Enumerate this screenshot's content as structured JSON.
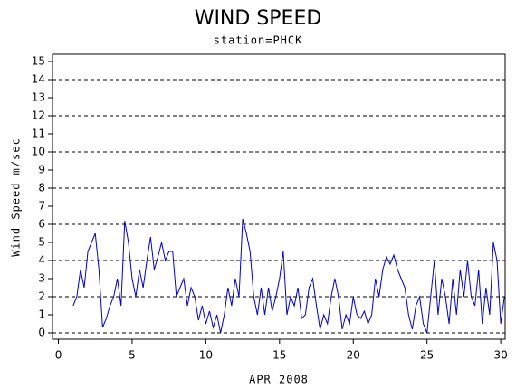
{
  "chart_data": {
    "type": "line",
    "title": "WIND SPEED",
    "subtitle": "station=PHCK",
    "x_label": "APR 2008",
    "y_label": "Wind Speed m/sec",
    "xlim": [
      -0.4,
      30.3
    ],
    "xticks": [
      0,
      5,
      10,
      15,
      20,
      25,
      30
    ],
    "ylim": [
      -0.35,
      15.4
    ],
    "yticks": [
      0,
      1,
      2,
      3,
      4,
      5,
      6,
      7,
      8,
      9,
      10,
      11,
      12,
      13,
      14,
      15
    ],
    "grid": true,
    "grid_step": 2,
    "x": [
      1,
      1.25,
      1.5,
      1.75,
      2,
      2.25,
      2.5,
      2.75,
      3,
      3.25,
      3.5,
      3.75,
      4,
      4.25,
      4.5,
      4.75,
      5,
      5.25,
      5.5,
      5.75,
      6,
      6.25,
      6.5,
      6.75,
      7,
      7.25,
      7.5,
      7.75,
      8,
      8.25,
      8.5,
      8.75,
      9,
      9.25,
      9.5,
      9.75,
      10,
      10.25,
      10.5,
      10.75,
      11,
      11.25,
      11.5,
      11.75,
      12,
      12.25,
      12.5,
      12.75,
      13,
      13.25,
      13.5,
      13.75,
      14,
      14.25,
      14.5,
      14.75,
      15,
      15.25,
      15.5,
      15.75,
      16,
      16.25,
      16.5,
      16.75,
      17,
      17.25,
      17.5,
      17.75,
      18,
      18.25,
      18.5,
      18.75,
      19,
      19.25,
      19.5,
      19.75,
      20,
      20.25,
      20.5,
      20.75,
      21,
      21.25,
      21.5,
      21.75,
      22,
      22.25,
      22.5,
      22.75,
      23,
      23.25,
      23.5,
      23.75,
      24,
      24.25,
      24.5,
      24.75,
      25,
      25.25,
      25.5,
      25.75,
      26,
      26.25,
      26.5,
      26.75,
      27,
      27.25,
      27.5,
      27.75,
      28,
      28.25,
      28.5,
      28.75,
      29,
      29.25,
      29.5,
      29.75,
      30,
      30.25
    ],
    "series": [
      {
        "color": "#0000cc",
        "values": [
          1.5,
          2.0,
          3.5,
          2.5,
          4.5,
          5.0,
          5.5,
          3.5,
          0.3,
          0.8,
          1.5,
          2.0,
          3.0,
          1.5,
          6.2,
          5.0,
          3.0,
          2.0,
          3.5,
          2.5,
          4.0,
          5.3,
          3.5,
          4.2,
          5.0,
          4.0,
          4.5,
          4.5,
          2.0,
          2.5,
          3.0,
          1.5,
          2.5,
          2.0,
          0.7,
          1.5,
          0.5,
          1.2,
          0.3,
          1.0,
          0.0,
          1.0,
          2.5,
          1.5,
          3.0,
          2.0,
          6.3,
          5.5,
          4.5,
          2.0,
          1.0,
          2.5,
          1.0,
          2.5,
          1.2,
          2.0,
          3.0,
          4.5,
          1.0,
          2.0,
          1.5,
          2.5,
          0.8,
          1.0,
          2.5,
          3.0,
          1.5,
          0.2,
          1.0,
          0.5,
          2.0,
          3.0,
          2.0,
          0.2,
          1.0,
          0.5,
          2.0,
          1.0,
          0.8,
          1.2,
          0.5,
          1.0,
          3.0,
          2.0,
          3.5,
          4.2,
          3.8,
          4.3,
          3.5,
          3.0,
          2.5,
          1.0,
          0.2,
          1.5,
          2.0,
          0.5,
          0.0,
          2.0,
          4.0,
          1.0,
          3.0,
          2.0,
          0.5,
          3.0,
          1.0,
          3.5,
          2.0,
          4.0,
          2.0,
          1.5,
          3.5,
          0.5,
          2.5,
          1.0,
          5.0,
          4.0,
          0.5,
          2.0
        ]
      }
    ]
  }
}
